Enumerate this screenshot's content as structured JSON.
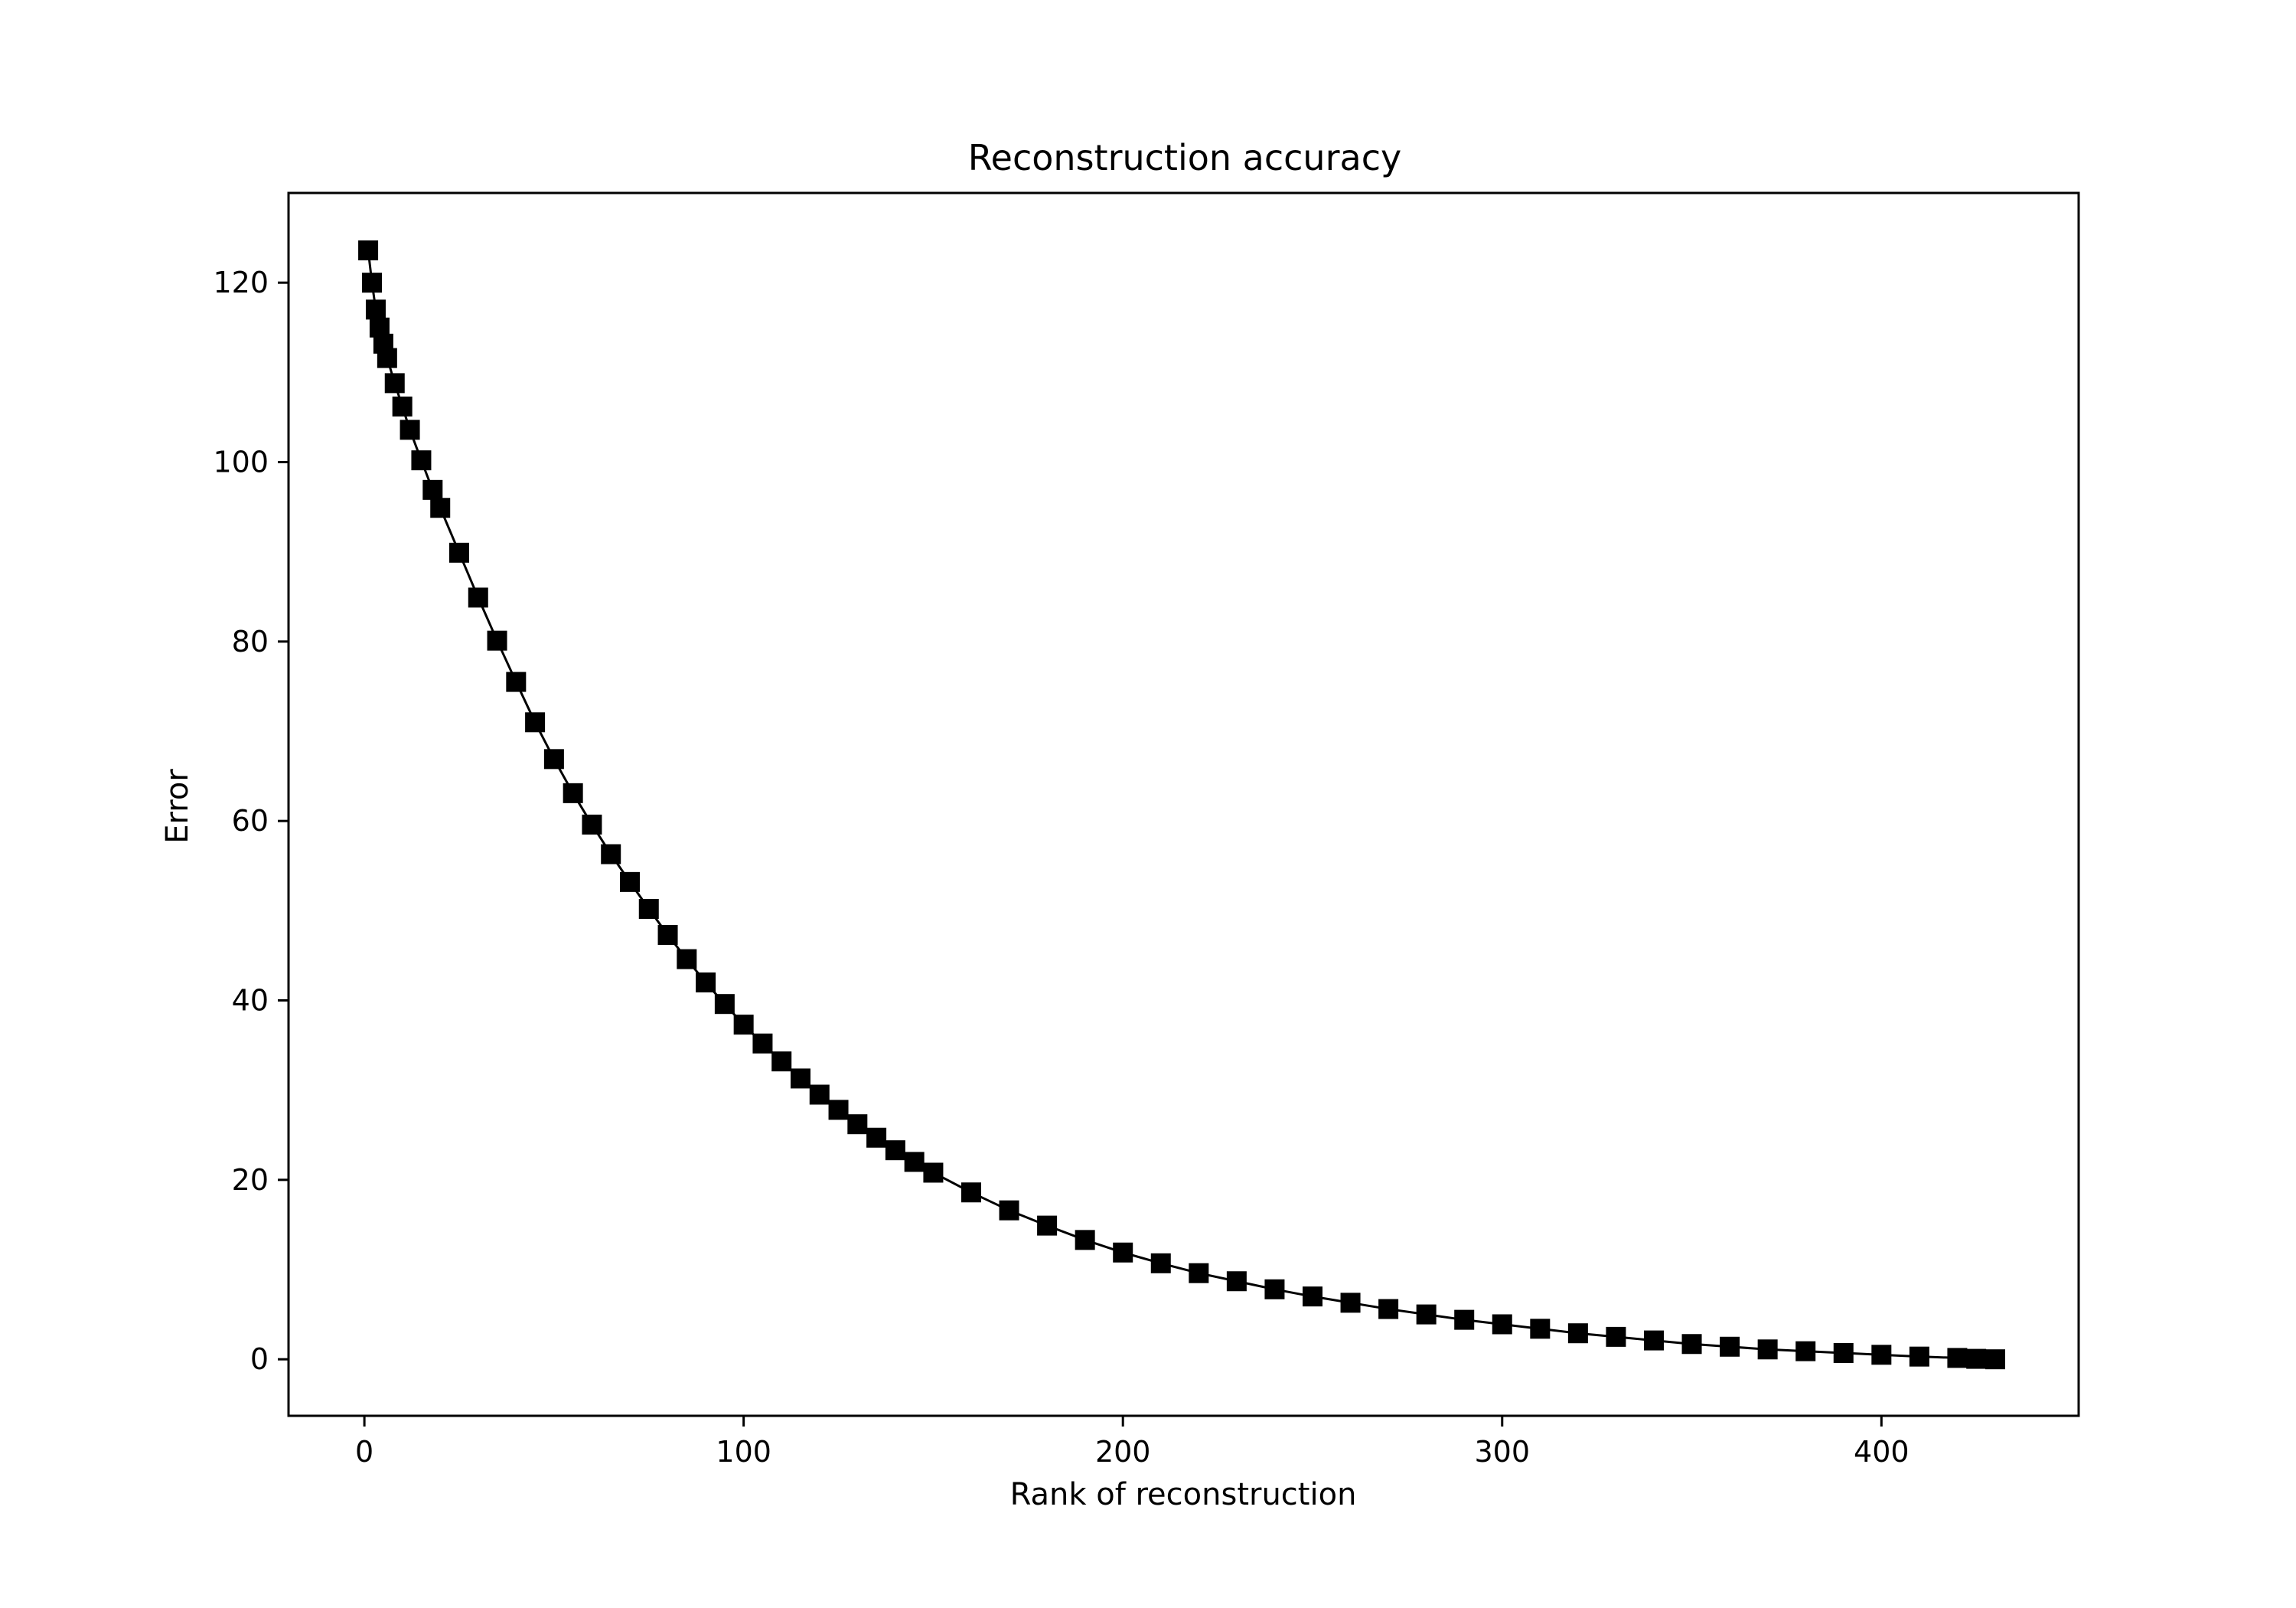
{
  "chart_data": {
    "type": "scatter",
    "title": "Reconstruction accuracy",
    "xlabel": "Rank of reconstruction",
    "ylabel": "Error",
    "xlim": [
      -20,
      452
    ],
    "ylim": [
      -6.3,
      130
    ],
    "xticks": [
      0,
      100,
      200,
      300,
      400
    ],
    "yticks": [
      0,
      20,
      40,
      60,
      80,
      100,
      120
    ],
    "grid": false,
    "legend": "none",
    "marker": "square",
    "color": "#000000",
    "series": [
      {
        "x": [
          1,
          2,
          3,
          4,
          5,
          6,
          8,
          10,
          12,
          15,
          18,
          20,
          25,
          30,
          35,
          40,
          45,
          50,
          55,
          60,
          65,
          70,
          75,
          80,
          85,
          90,
          95,
          100,
          105,
          110,
          115,
          120,
          125,
          130,
          135,
          140,
          145,
          150,
          160,
          170,
          180,
          190,
          200,
          210,
          220,
          230,
          240,
          250,
          260,
          270,
          280,
          290,
          300,
          310,
          320,
          330,
          340,
          350,
          360,
          370,
          380,
          390,
          400,
          410,
          420,
          425,
          430
        ],
        "values": [
          123.6,
          120.0,
          117.0,
          115.0,
          113.2,
          111.6,
          108.8,
          106.2,
          103.6,
          100.2,
          96.9,
          94.9,
          89.9,
          84.9,
          80.1,
          75.5,
          71.0,
          66.9,
          63.1,
          59.6,
          56.3,
          53.2,
          50.2,
          47.3,
          44.6,
          42.0,
          39.6,
          37.3,
          35.2,
          33.2,
          31.3,
          29.5,
          27.8,
          26.2,
          24.7,
          23.3,
          22.0,
          20.8,
          18.6,
          16.6,
          14.9,
          13.3,
          11.9,
          10.7,
          9.6,
          8.7,
          7.8,
          7.0,
          6.3,
          5.6,
          5.0,
          4.4,
          3.9,
          3.4,
          2.9,
          2.5,
          2.1,
          1.7,
          1.4,
          1.1,
          0.9,
          0.7,
          0.5,
          0.3,
          0.15,
          0.05,
          0.0
        ]
      }
    ]
  }
}
